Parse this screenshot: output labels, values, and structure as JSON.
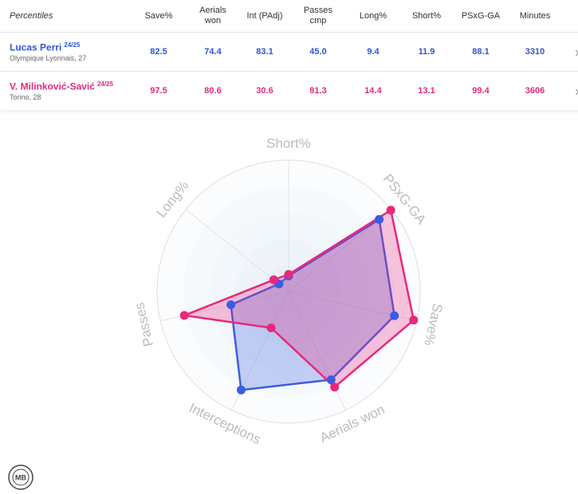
{
  "table": {
    "headers": [
      "Percentiles",
      "Save%",
      "Aerials won",
      "Int (PAdj)",
      "Passes cmp",
      "Long%",
      "Short%",
      "PSxG-GA",
      "Minutes"
    ],
    "rows": [
      {
        "name": "Lucas Perri",
        "season": "24/25",
        "club": "Olympique Lyonnais, 27",
        "color": "#2f55d4",
        "cells": [
          "82.5",
          "74.4",
          "83.1",
          "45.0",
          "9.4",
          "11.9",
          "88.1",
          "3310"
        ],
        "remove": "x"
      },
      {
        "name": "V. Milinković-Savić",
        "season": "24/25",
        "club": "Torino, 28",
        "color": "#e3287c",
        "cells": [
          "97.5",
          "80.6",
          "30.6",
          "81.3",
          "14.4",
          "13.1",
          "99.4",
          "3606"
        ],
        "remove": "x"
      }
    ]
  },
  "chart_data": {
    "type": "radar",
    "axes": [
      "Short%",
      "PSxG-GA",
      "Save%",
      "Aerials won",
      "Interceptions",
      "Passes",
      "Long%"
    ],
    "rlim": [
      0,
      100
    ],
    "rticks": [
      20,
      40,
      60,
      80,
      100
    ],
    "series": [
      {
        "color": "#3b5de0",
        "values": [
          11.9,
          88.1,
          82.5,
          74.4,
          83.1,
          45.0,
          9.4
        ]
      },
      {
        "color": "#e8287c",
        "values": [
          13.1,
          99.4,
          97.5,
          80.6,
          30.6,
          81.3,
          14.4
        ]
      }
    ]
  },
  "logo": "MB"
}
